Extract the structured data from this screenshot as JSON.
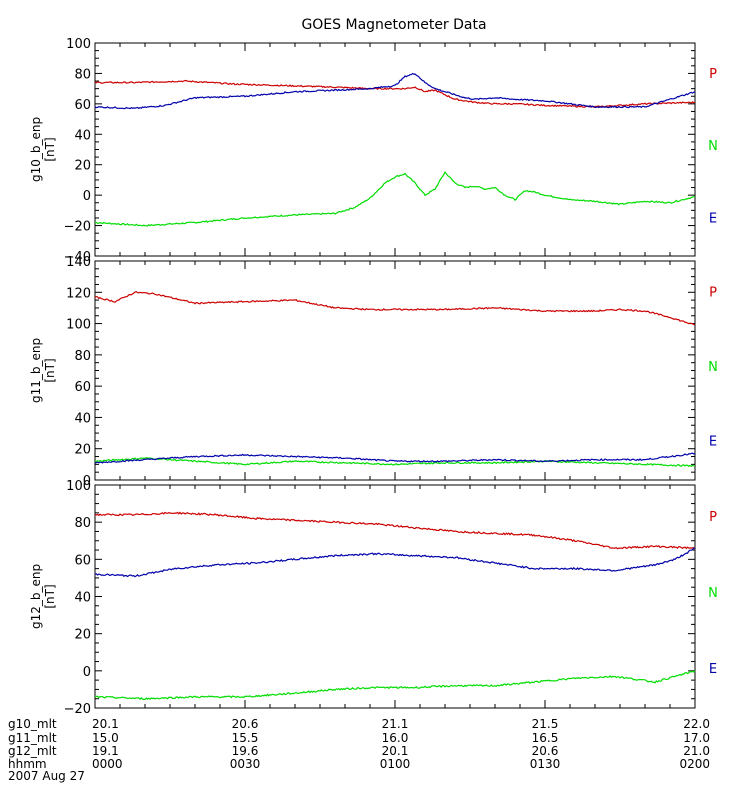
{
  "title": "GOES Magnetometer Data",
  "colors": {
    "P": "#cc0000",
    "N": "#00dd00",
    "E": "#0000aa",
    "axis": "#000000",
    "background": "#ffffff"
  },
  "legend": {
    "P": "P",
    "N": "N",
    "E": "E"
  },
  "footer": {
    "row_labels": [
      "g10_mlt",
      "g11_mlt",
      "g12_mlt",
      "hhmm"
    ],
    "date": "2007 Aug 27",
    "columns": [
      [
        "20.1",
        "15.0",
        "19.1",
        "0000"
      ],
      [
        "20.6",
        "15.5",
        "19.6",
        "0030"
      ],
      [
        "21.1",
        "16.0",
        "20.1",
        "0100"
      ],
      [
        "21.5",
        "16.5",
        "20.6",
        "0130"
      ],
      [
        "22.0",
        "17.0",
        "21.0",
        "0200"
      ]
    ]
  },
  "chart_data": [
    {
      "type": "line",
      "ylabel": "g10_b_enp",
      "yunit": "[nT]",
      "xlim": [
        0,
        120
      ],
      "ylim": [
        -40,
        100
      ],
      "yticks": [
        "100",
        "80",
        "60",
        "40",
        "20",
        "0",
        "−20",
        "−40"
      ],
      "ytick_values": [
        100,
        80,
        60,
        40,
        20,
        0,
        -20,
        -40
      ],
      "series": [
        {
          "key": "P",
          "x": [
            0,
            8,
            18,
            28,
            38,
            48,
            55,
            60,
            62,
            64,
            66,
            68,
            70,
            72,
            74,
            76,
            80,
            84,
            90,
            100,
            110,
            120
          ],
          "y": [
            74,
            74,
            75,
            73,
            72,
            71,
            70,
            70,
            70,
            71,
            68,
            69,
            66,
            63,
            62,
            61,
            60,
            60,
            59,
            58,
            60,
            61
          ]
        },
        {
          "key": "E",
          "x": [
            0,
            8,
            14,
            20,
            30,
            40,
            48,
            55,
            60,
            62,
            64,
            66,
            68,
            70,
            72,
            74,
            76,
            80,
            84,
            90,
            100,
            110,
            120
          ],
          "y": [
            58,
            57,
            59,
            64,
            65,
            68,
            69,
            70,
            72,
            78,
            80,
            74,
            70,
            68,
            66,
            64,
            63,
            64,
            63,
            62,
            58,
            58,
            68
          ]
        },
        {
          "key": "N",
          "x": [
            0,
            10,
            20,
            30,
            40,
            48,
            52,
            55,
            58,
            60,
            62,
            64,
            66,
            68,
            70,
            72,
            74,
            76,
            78,
            80,
            82,
            84,
            86,
            88,
            90,
            95,
            100,
            105,
            110,
            115,
            120
          ],
          "y": [
            -18,
            -20,
            -18,
            -15,
            -13,
            -12,
            -8,
            -2,
            8,
            12,
            14,
            8,
            0,
            4,
            15,
            8,
            5,
            6,
            4,
            5,
            0,
            -3,
            3,
            2,
            0,
            -3,
            -4,
            -6,
            -4,
            -5,
            -1
          ]
        }
      ]
    },
    {
      "type": "line",
      "ylabel": "g11_b_enp",
      "yunit": "[nT]",
      "xlim": [
        0,
        120
      ],
      "ylim": [
        0,
        140
      ],
      "yticks": [
        "140",
        "120",
        "100",
        "80",
        "60",
        "40",
        "20",
        "0"
      ],
      "ytick_values": [
        140,
        120,
        100,
        80,
        60,
        40,
        20,
        0
      ],
      "series": [
        {
          "key": "P",
          "x": [
            0,
            4,
            8,
            12,
            16,
            20,
            30,
            40,
            48,
            55,
            60,
            70,
            80,
            90,
            100,
            105,
            110,
            115,
            118,
            120
          ],
          "y": [
            117,
            114,
            120,
            119,
            116,
            113,
            114,
            115,
            110,
            109,
            109,
            109,
            110,
            108,
            108,
            109,
            108,
            104,
            101,
            99
          ]
        },
        {
          "key": "E",
          "x": [
            0,
            10,
            20,
            30,
            40,
            50,
            60,
            70,
            80,
            90,
            100,
            110,
            115,
            120
          ],
          "y": [
            11,
            13,
            15,
            16,
            15,
            14,
            12,
            12,
            13,
            12,
            13,
            13,
            15,
            17
          ]
        },
        {
          "key": "N",
          "x": [
            0,
            10,
            20,
            30,
            40,
            50,
            60,
            70,
            80,
            90,
            100,
            110,
            120
          ],
          "y": [
            12,
            14,
            12,
            10,
            12,
            11,
            10,
            11,
            11,
            12,
            11,
            10,
            9
          ]
        }
      ]
    },
    {
      "type": "line",
      "ylabel": "g12_b_enp",
      "yunit": "[nT]",
      "xlim": [
        0,
        120
      ],
      "ylim": [
        -20,
        100
      ],
      "yticks": [
        "100",
        "80",
        "60",
        "40",
        "20",
        "0",
        "−20"
      ],
      "ytick_values": [
        100,
        80,
        60,
        40,
        20,
        0,
        -20
      ],
      "series": [
        {
          "key": "P",
          "x": [
            0,
            8,
            16,
            24,
            32,
            40,
            48,
            56,
            64,
            72,
            80,
            88,
            96,
            104,
            112,
            120
          ],
          "y": [
            84,
            84,
            85,
            84,
            82,
            81,
            80,
            79,
            77,
            75,
            74,
            73,
            70,
            66,
            67,
            66
          ]
        },
        {
          "key": "E",
          "x": [
            0,
            8,
            16,
            24,
            32,
            40,
            48,
            56,
            64,
            72,
            80,
            88,
            96,
            104,
            112,
            116,
            120
          ],
          "y": [
            52,
            51,
            55,
            57,
            58,
            60,
            62,
            63,
            62,
            61,
            58,
            55,
            55,
            54,
            57,
            60,
            66
          ]
        },
        {
          "key": "N",
          "x": [
            0,
            10,
            20,
            30,
            40,
            48,
            56,
            64,
            72,
            80,
            88,
            96,
            104,
            112,
            116,
            120
          ],
          "y": [
            -14,
            -15,
            -14,
            -14,
            -12,
            -10,
            -9,
            -9,
            -8,
            -8,
            -6,
            -4,
            -3,
            -6,
            -3,
            0
          ]
        }
      ]
    }
  ]
}
